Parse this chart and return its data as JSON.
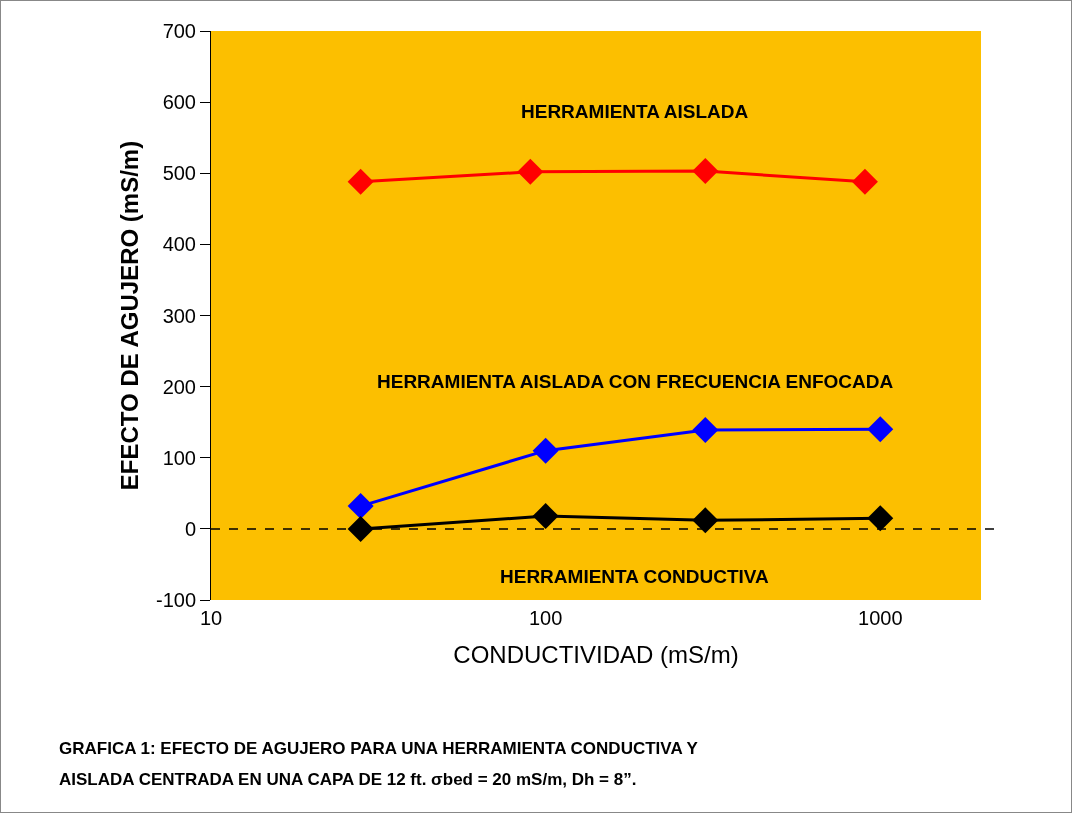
{
  "chart_data": {
    "type": "line",
    "xlabel": "CONDUCTIVIDAD (mS/m)",
    "ylabel": "EFECTO DE AGUJERO (mS/m)",
    "log": "x",
    "xlim": [
      10,
      2000
    ],
    "xticks": [
      10,
      100,
      1000
    ],
    "ylim": [
      -100,
      700
    ],
    "yticks": [
      -100,
      0,
      100,
      200,
      300,
      400,
      500,
      600,
      700
    ],
    "grid": false,
    "legend": false,
    "marker": "diamond",
    "line_style": "solid",
    "series": [
      {
        "name": "HERRAMIENTA AISLADA",
        "color": "#ff0000",
        "x": [
          28,
          90,
          300,
          900
        ],
        "values": [
          488,
          502,
          503,
          488
        ]
      },
      {
        "name": "HERRAMIENTA AISLADA CON FRECUENCIA ENFOCADA",
        "color": "#0000ff",
        "x": [
          28,
          100,
          300,
          1000
        ],
        "values": [
          32,
          110,
          139,
          140
        ]
      },
      {
        "name": "HERRAMIENTA CONDUCTIVA",
        "color": "#000000",
        "x": [
          28,
          100,
          300,
          1000
        ],
        "values": [
          0,
          18,
          12,
          15
        ]
      }
    ],
    "ref_lines": [
      {
        "axis": "y",
        "value": 0,
        "line_style": "dashed",
        "color": "#000000"
      }
    ],
    "annotations": [
      "GRAFICA 1: EFECTO DE AGUJERO PARA UNA HERRAMIENTA CONDUCTIVA Y",
      "AISLADA CENTRADA EN UNA CAPA DE 12 ft. σbed = 20 mS/m, Dh = 8”."
    ]
  }
}
